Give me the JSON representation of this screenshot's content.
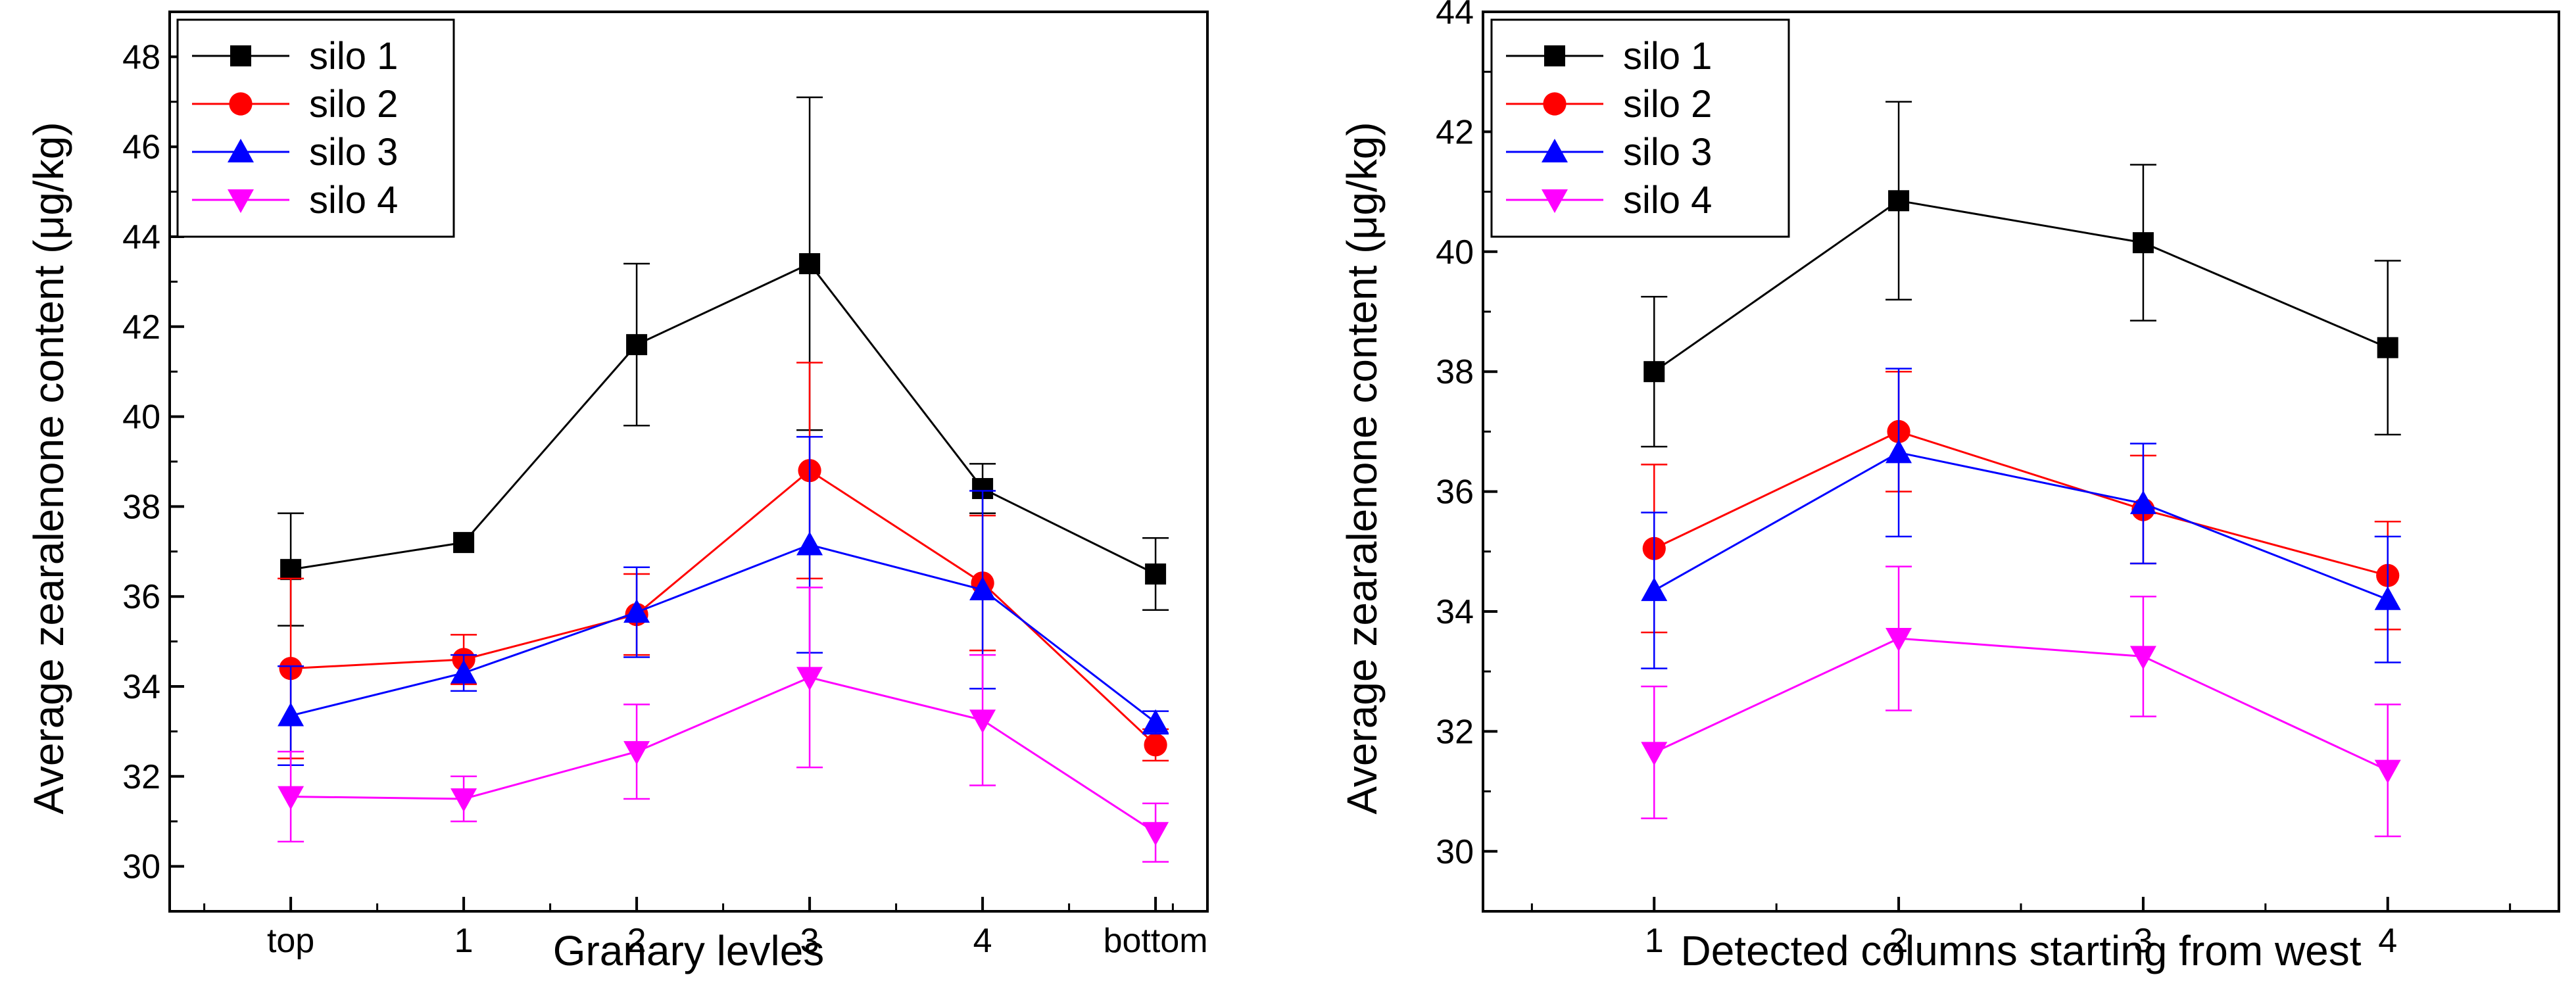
{
  "chart_data": [
    {
      "type": "line",
      "title": "",
      "xlabel": "Granary levles",
      "ylabel": "Average zearalenone content (μg/kg)",
      "categories": [
        "top",
        "1",
        "2",
        "3",
        "4",
        "bottom"
      ],
      "ylim": [
        29,
        49
      ],
      "yticks": [
        30,
        32,
        34,
        36,
        38,
        40,
        42,
        44,
        46,
        48
      ],
      "legend_position": "top-left",
      "series": [
        {
          "name": "silo 1",
          "color": "#000000",
          "marker": "square",
          "values": [
            36.6,
            37.2,
            41.6,
            43.4,
            38.4,
            36.5
          ],
          "errors": [
            1.25,
            0.0,
            1.8,
            3.7,
            0.55,
            0.8
          ]
        },
        {
          "name": "silo 2",
          "color": "#ff0000",
          "marker": "circle",
          "values": [
            34.4,
            34.6,
            35.6,
            38.8,
            36.3,
            32.7
          ],
          "errors": [
            2.0,
            0.55,
            0.9,
            2.4,
            1.5,
            0.35
          ]
        },
        {
          "name": "silo 3",
          "color": "#0000ff",
          "marker": "triangle-up",
          "values": [
            33.35,
            34.3,
            35.65,
            37.15,
            36.15,
            33.2
          ],
          "errors": [
            1.1,
            0.4,
            1.0,
            2.4,
            2.2,
            0.25
          ]
        },
        {
          "name": "silo 4",
          "color": "#ff00ff",
          "marker": "triangle-down",
          "values": [
            31.55,
            31.5,
            32.55,
            34.2,
            33.25,
            30.75
          ],
          "errors": [
            1.0,
            0.5,
            1.05,
            2.0,
            1.45,
            0.65
          ]
        }
      ]
    },
    {
      "type": "line",
      "title": "",
      "xlabel": "Detected columns starting from west",
      "ylabel": "Average zearalenone content (μg/kg)",
      "categories": [
        "1",
        "2",
        "3",
        "4"
      ],
      "ylim": [
        29,
        44
      ],
      "yticks": [
        30,
        32,
        34,
        36,
        38,
        40,
        42,
        44
      ],
      "legend_position": "top-left",
      "series": [
        {
          "name": "silo 1",
          "color": "#000000",
          "marker": "square",
          "values": [
            38.0,
            40.85,
            40.15,
            38.4
          ],
          "errors": [
            1.25,
            1.65,
            1.3,
            1.45
          ]
        },
        {
          "name": "silo 2",
          "color": "#ff0000",
          "marker": "circle",
          "values": [
            35.05,
            37.0,
            35.7,
            34.6
          ],
          "errors": [
            1.4,
            1.0,
            0.9,
            0.9
          ]
        },
        {
          "name": "silo 3",
          "color": "#0000ff",
          "marker": "triangle-up",
          "values": [
            34.35,
            36.65,
            35.8,
            34.2
          ],
          "errors": [
            1.3,
            1.4,
            1.0,
            1.05
          ]
        },
        {
          "name": "silo 4",
          "color": "#ff00ff",
          "marker": "triangle-down",
          "values": [
            31.65,
            33.55,
            33.25,
            31.35
          ],
          "errors": [
            1.1,
            1.2,
            1.0,
            1.1
          ]
        }
      ]
    }
  ]
}
